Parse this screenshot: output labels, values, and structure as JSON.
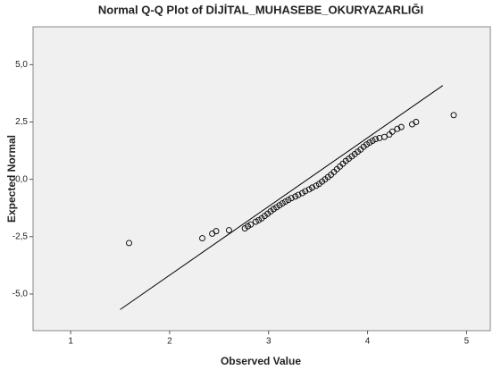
{
  "chart_data": {
    "type": "scatter",
    "title": "Normal Q-Q Plot of DİJİTAL_MUHASEBE_OKURYAZARLIĞI",
    "x_label": "Observed Value",
    "y_label": "Expected Normal",
    "xlim": [
      0.62,
      5.24
    ],
    "ylim": [
      -6.6,
      6.65
    ],
    "xticks": [
      1,
      2,
      3,
      4,
      5
    ],
    "yticks": [
      {
        "value": -5,
        "label": "-5,0"
      },
      {
        "value": -2.5,
        "label": "-2,5"
      },
      {
        "value": 0,
        "label": "0,0"
      },
      {
        "value": 2.5,
        "label": "2,5"
      },
      {
        "value": 5,
        "label": "5,0"
      }
    ],
    "color": "#000000",
    "x": [
      1.59,
      2.33,
      2.43,
      2.47,
      2.6,
      2.76,
      2.79,
      2.82,
      2.87,
      2.9,
      2.93,
      2.96,
      2.99,
      3.02,
      3.05,
      3.08,
      3.11,
      3.14,
      3.17,
      3.2,
      3.23,
      3.27,
      3.3,
      3.34,
      3.37,
      3.41,
      3.44,
      3.48,
      3.51,
      3.54,
      3.57,
      3.6,
      3.63,
      3.66,
      3.69,
      3.72,
      3.75,
      3.78,
      3.81,
      3.84,
      3.87,
      3.9,
      3.93,
      3.96,
      3.99,
      4.02,
      4.05,
      4.08,
      4.12,
      4.17,
      4.22,
      4.25,
      4.3,
      4.34,
      4.45,
      4.49,
      4.87
    ],
    "values": [
      -2.78,
      -2.57,
      -2.37,
      -2.26,
      -2.22,
      -2.14,
      -2.05,
      -1.97,
      -1.85,
      -1.78,
      -1.7,
      -1.6,
      -1.5,
      -1.4,
      -1.3,
      -1.22,
      -1.13,
      -1.05,
      -0.97,
      -0.9,
      -0.82,
      -0.75,
      -0.68,
      -0.6,
      -0.52,
      -0.44,
      -0.36,
      -0.28,
      -0.2,
      -0.1,
      0.0,
      0.1,
      0.2,
      0.32,
      0.44,
      0.56,
      0.68,
      0.8,
      0.9,
      1.0,
      1.1,
      1.2,
      1.3,
      1.42,
      1.52,
      1.6,
      1.68,
      1.75,
      1.8,
      1.85,
      1.95,
      2.08,
      2.2,
      2.28,
      2.4,
      2.5,
      2.8
    ],
    "reference_line": {
      "x": [
        1.5,
        4.76
      ],
      "y": [
        -5.68,
        4.09
      ]
    }
  }
}
